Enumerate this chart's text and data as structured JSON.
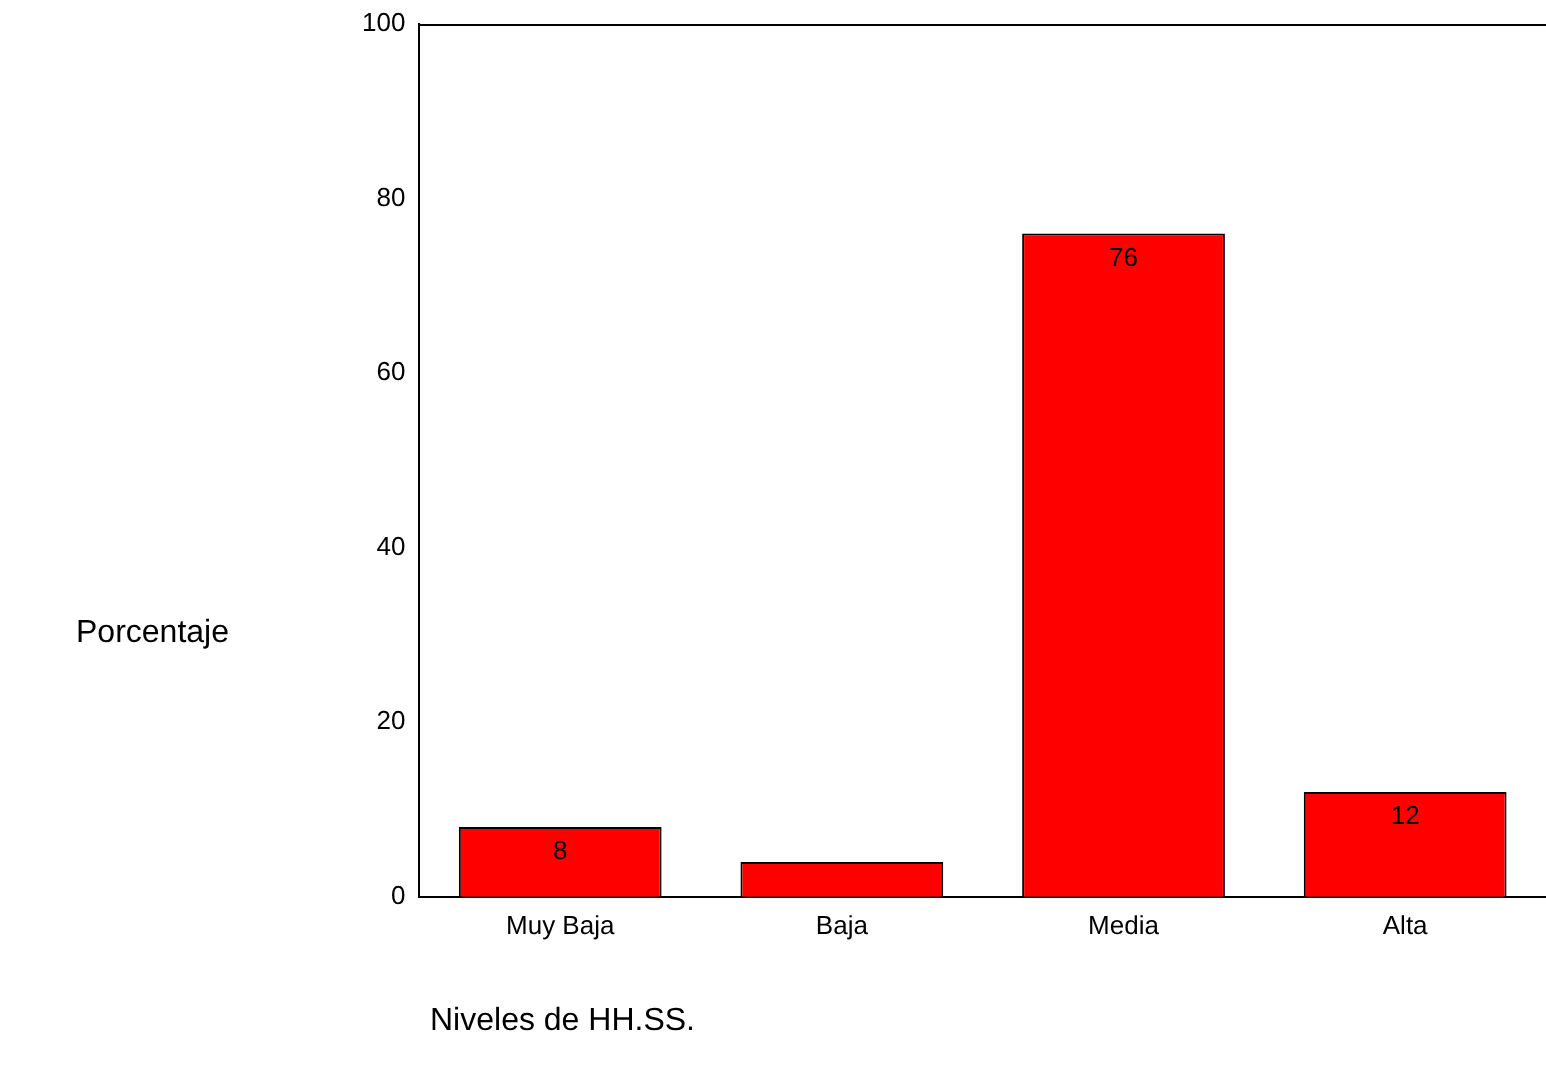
{
  "chart_data": {
    "type": "bar",
    "xlabel": "Niveles de HH.SS.",
    "ylabel": "Porcentaje",
    "categories": [
      "Muy Baja",
      "Baja",
      "Media",
      "Alta"
    ],
    "values": [
      8,
      4,
      76,
      12
    ],
    "value_labels": [
      "8",
      null,
      "76",
      "12"
    ],
    "color": "#ff0000",
    "ylim": [
      0,
      100
    ],
    "yticks": [
      0,
      20,
      40,
      60,
      80,
      100
    ],
    "grid": false,
    "legend": false
  }
}
